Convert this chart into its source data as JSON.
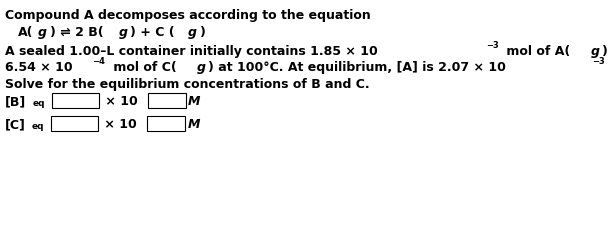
{
  "bg_color": "#ffffff",
  "figsize": [
    6.08,
    2.43
  ],
  "dpi": 100,
  "title_line": "Compound A decomposes according to the equation",
  "solve_line": "Solve for the equilibrium concentrations of B and C.",
  "M_label": "M",
  "font_size": 9.0,
  "font_size_sup": 6.0,
  "font_size_sub": 6.5
}
